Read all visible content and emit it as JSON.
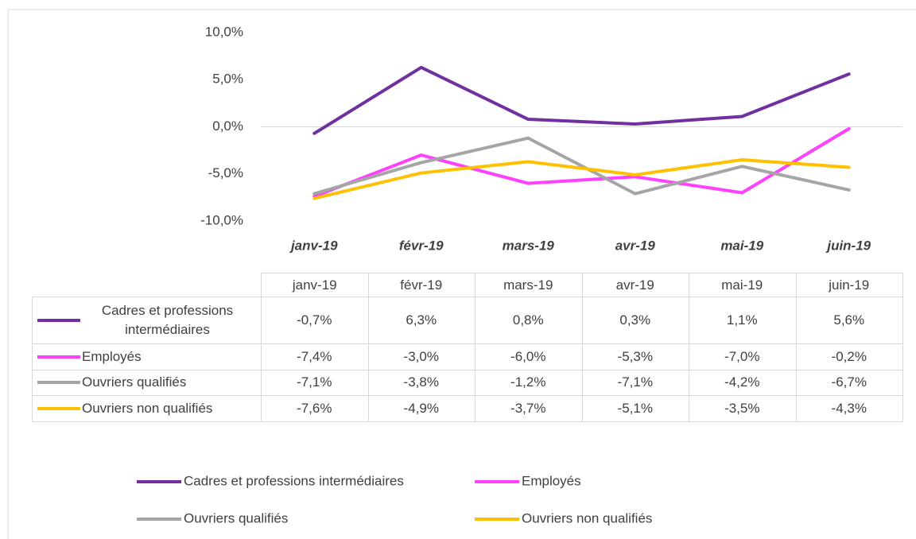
{
  "chart_data": {
    "type": "line",
    "categories": [
      "janv-19",
      "févr-19",
      "mars-19",
      "avr-19",
      "mai-19",
      "juin-19"
    ],
    "series": [
      {
        "name": "Cadres et professions intermédiaires",
        "color": "#7030a0",
        "values": [
          -0.7,
          6.3,
          0.8,
          0.3,
          1.1,
          5.6
        ],
        "value_labels": [
          "-0,7%",
          "6,3%",
          "0,8%",
          "0,3%",
          "1,1%",
          "5,6%"
        ]
      },
      {
        "name": "Employés",
        "color": "#ff40ff",
        "values": [
          -7.4,
          -3.0,
          -6.0,
          -5.3,
          -7.0,
          -0.2
        ],
        "value_labels": [
          "-7,4%",
          "-3,0%",
          "-6,0%",
          "-5,3%",
          "-7,0%",
          "-0,2%"
        ]
      },
      {
        "name": "Ouvriers qualifiés",
        "color": "#a5a5a5",
        "values": [
          -7.1,
          -3.8,
          -1.2,
          -7.1,
          -4.2,
          -6.7
        ],
        "value_labels": [
          "-7,1%",
          "-3,8%",
          "-1,2%",
          "-7,1%",
          "-4,2%",
          "-6,7%"
        ]
      },
      {
        "name": "Ouvriers non qualifiés",
        "color": "#ffc000",
        "values": [
          -7.6,
          -4.9,
          -3.7,
          -5.1,
          -3.5,
          -4.3
        ],
        "value_labels": [
          "-7,6%",
          "-4,9%",
          "-3,7%",
          "-5,1%",
          "-3,5%",
          "-4,3%"
        ]
      }
    ],
    "ylim": [
      -10,
      10
    ],
    "yticks": [
      {
        "value": -10,
        "label": "-10,0%"
      },
      {
        "value": -5,
        "label": "-5,0%"
      },
      {
        "value": 0,
        "label": "0,0%"
      },
      {
        "value": 5,
        "label": "5,0%"
      },
      {
        "value": 10,
        "label": "10,0%"
      }
    ],
    "grid": false,
    "legend": "bottom"
  }
}
